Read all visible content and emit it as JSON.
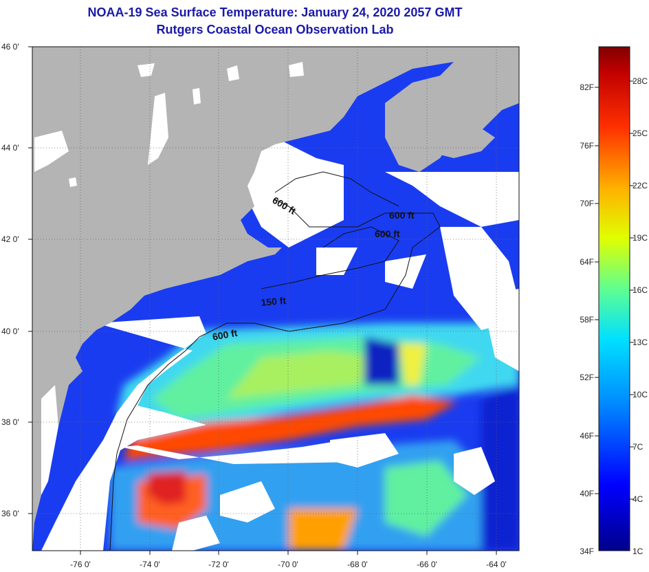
{
  "header": {
    "title": "NOAA-19 Sea Surface Temperature:  January 24, 2020 2057 GMT",
    "subtitle": "Rutgers Coastal Ocean Observation Lab"
  },
  "map": {
    "lat_ticks": [
      "46 0'",
      "44 0'",
      "42 0'",
      "40 0'",
      "38 0'",
      "36 0'"
    ],
    "lon_ticks": [
      "-76 0'",
      "-74 0'",
      "-72 0'",
      "-70 0'",
      "-68 0'",
      "-66 0'",
      "-64 0'"
    ],
    "contour_labels": [
      "600 ft",
      "600 ft",
      "600 ft",
      "150 ft",
      "600 ft"
    ],
    "colors": {
      "land": "#b4b4b4",
      "cloud": "#ffffff",
      "cold": "#1030e0",
      "warm": "#ff3000"
    }
  },
  "colorbar": {
    "fahrenheit": [
      "82F",
      "76F",
      "70F",
      "64F",
      "58F",
      "52F",
      "46F",
      "40F",
      "34F"
    ],
    "celsius": [
      "28C",
      "25C",
      "22C",
      "19C",
      "16C",
      "13C",
      "10C",
      "7C",
      "4C",
      "1C"
    ]
  }
}
